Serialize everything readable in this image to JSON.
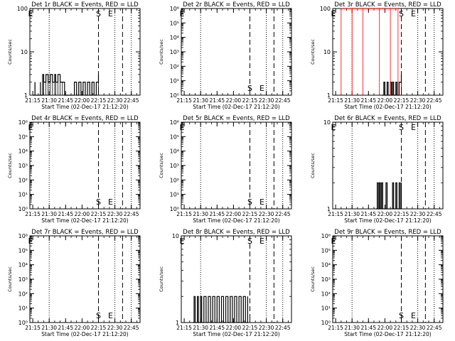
{
  "x_tick_labels": [
    "21:15",
    "21:30",
    "21:45",
    "22:00",
    "22:15",
    "22:30",
    "22:45"
  ],
  "xlabel": "Start Time (02-Dec-17 21:12:20)",
  "ylabel": "Counts/sec",
  "colors": {
    "events": "#000000",
    "lld": "#ff0000"
  },
  "chart_data": [
    {
      "type": "line",
      "title": "Det 1r BLACK = Events, RED = LLD",
      "y_scale": "log",
      "ylim": [
        1,
        100
      ],
      "y_ticks": [
        {
          "v": 1,
          "label": "1"
        },
        {
          "v": 10,
          "label": "10"
        },
        {
          "v": 100,
          "label": "100"
        }
      ],
      "markers": [
        {
          "label": "E",
          "x": "21:13"
        },
        {
          "label": "S",
          "x": "22:15"
        },
        {
          "label": "E",
          "x": "22:26"
        }
      ],
      "series": [
        {
          "color": "#000000",
          "x": [
            "21:15",
            "21:17",
            "21:17",
            "21:22",
            "21:22",
            "21:24",
            "21:25",
            "21:27",
            "21:29",
            "21:31",
            "21:33",
            "21:35",
            "21:36",
            "21:38",
            "21:40",
            "21:42",
            "21:44",
            "21:46",
            "21:47",
            "21:49",
            "21:51",
            "21:53",
            "21:55",
            "21:57",
            "21:59",
            "22:01",
            "22:03",
            "22:05",
            "22:07",
            "22:09",
            "22:11",
            "22:13",
            "22:15"
          ],
          "y": [
            1,
            2,
            1,
            2,
            1,
            3,
            2,
            3,
            2,
            3,
            2,
            3,
            2,
            3,
            2,
            2,
            1,
            1,
            1,
            1,
            1,
            2,
            1,
            2,
            1,
            2,
            1,
            2,
            1,
            2,
            1,
            2,
            3
          ]
        }
      ]
    },
    {
      "type": "line",
      "title": "Det 2r BLACK = Events, RED = LLD",
      "y_scale": "log",
      "ylim": [
        1,
        1000000
      ],
      "y_ticks": [
        {
          "v": 1,
          "label": "10⁰"
        },
        {
          "v": 10,
          "label": "10¹"
        },
        {
          "v": 100,
          "label": "10²"
        },
        {
          "v": 1000,
          "label": "10³"
        },
        {
          "v": 10000,
          "label": "10⁴"
        },
        {
          "v": 100000,
          "label": "10⁵"
        },
        {
          "v": 1000000,
          "label": "10⁶"
        }
      ],
      "markers": [
        {
          "label": "E",
          "x": "21:13"
        },
        {
          "label": "S",
          "x": "22:15"
        },
        {
          "label": "E",
          "x": "22:26"
        }
      ],
      "series": []
    },
    {
      "type": "line",
      "title": "Det 3r BLACK = Events, RED = LLD",
      "y_scale": "log",
      "ylim": [
        1,
        100
      ],
      "y_ticks": [
        {
          "v": 1,
          "label": "1"
        },
        {
          "v": 10,
          "label": "10"
        },
        {
          "v": 100,
          "label": "100"
        }
      ],
      "markers": [
        {
          "label": "E",
          "x": "21:13"
        },
        {
          "label": "S",
          "x": "22:15"
        },
        {
          "label": "E",
          "x": "22:26"
        }
      ],
      "series": [
        {
          "color": "#000000",
          "x": [
            "21:57",
            "21:59",
            "22:00",
            "22:02",
            "22:03",
            "22:05",
            "22:06",
            "22:07",
            "22:08",
            "22:10",
            "22:11",
            "22:13",
            "22:15"
          ],
          "y": [
            1,
            2,
            1,
            2,
            1,
            2,
            1,
            2,
            1,
            2,
            1,
            2,
            3
          ]
        },
        {
          "color": "#ff0000",
          "x": [
            "21:20",
            "21:30",
            "21:40",
            "21:55",
            "22:05",
            "22:12"
          ],
          "y": [
            100,
            100,
            100,
            100,
            100,
            100
          ]
        }
      ]
    },
    {
      "type": "line",
      "title": "Det 4r BLACK = Events, RED = LLD",
      "y_scale": "log",
      "ylim": [
        1,
        1000000
      ],
      "y_ticks": [
        {
          "v": 1,
          "label": "10⁰"
        },
        {
          "v": 10,
          "label": "10¹"
        },
        {
          "v": 100,
          "label": "10²"
        },
        {
          "v": 1000,
          "label": "10³"
        },
        {
          "v": 10000,
          "label": "10⁴"
        },
        {
          "v": 100000,
          "label": "10⁵"
        },
        {
          "v": 1000000,
          "label": "10⁶"
        }
      ],
      "markers": [
        {
          "label": "E",
          "x": "21:13"
        },
        {
          "label": "S",
          "x": "22:15"
        },
        {
          "label": "E",
          "x": "22:26"
        }
      ],
      "series": []
    },
    {
      "type": "line",
      "title": "Det 5r BLACK = Events, RED = LLD",
      "y_scale": "log",
      "ylim": [
        1,
        1000000
      ],
      "y_ticks": [
        {
          "v": 1,
          "label": "10⁰"
        },
        {
          "v": 10,
          "label": "10¹"
        },
        {
          "v": 100,
          "label": "10²"
        },
        {
          "v": 1000,
          "label": "10³"
        },
        {
          "v": 10000,
          "label": "10⁴"
        },
        {
          "v": 100000,
          "label": "10⁵"
        },
        {
          "v": 1000000,
          "label": "10⁶"
        }
      ],
      "markers": [
        {
          "label": "E",
          "x": "21:13"
        },
        {
          "label": "S",
          "x": "22:15"
        },
        {
          "label": "E",
          "x": "22:26"
        }
      ],
      "series": []
    },
    {
      "type": "line",
      "title": "Det 6r BLACK = Events, RED = LLD",
      "y_scale": "log",
      "ylim": [
        1,
        10
      ],
      "y_ticks": [
        {
          "v": 1,
          "label": "1"
        },
        {
          "v": 10,
          "label": "10"
        }
      ],
      "markers": [
        {
          "label": "E",
          "x": "21:13"
        },
        {
          "label": "S",
          "x": "22:15"
        },
        {
          "label": "E",
          "x": "22:26"
        }
      ],
      "series": [
        {
          "color": "#000000",
          "x": [
            "21:52",
            "21:53",
            "21:54",
            "21:55",
            "21:56",
            "21:57",
            "21:58",
            "22:01",
            "22:02",
            "22:07",
            "22:08",
            "22:10",
            "22:11",
            "22:13",
            "22:14",
            "22:15"
          ],
          "y": [
            1,
            2,
            1,
            2,
            1,
            2,
            1,
            2,
            1,
            2,
            1,
            2,
            1,
            2,
            1,
            2
          ]
        }
      ]
    },
    {
      "type": "line",
      "title": "Det 7r BLACK = Events, RED = LLD",
      "y_scale": "log",
      "ylim": [
        1,
        1000000
      ],
      "y_ticks": [
        {
          "v": 1,
          "label": "10⁰"
        },
        {
          "v": 10,
          "label": "10¹"
        },
        {
          "v": 100,
          "label": "10²"
        },
        {
          "v": 1000,
          "label": "10³"
        },
        {
          "v": 10000,
          "label": "10⁴"
        },
        {
          "v": 100000,
          "label": "10⁵"
        },
        {
          "v": 1000000,
          "label": "10⁶"
        }
      ],
      "markers": [
        {
          "label": "E",
          "x": "21:13"
        },
        {
          "label": "S",
          "x": "22:15"
        },
        {
          "label": "E",
          "x": "22:26"
        }
      ],
      "series": []
    },
    {
      "type": "line",
      "title": "Det 8r BLACK = Events, RED = LLD",
      "y_scale": "log",
      "ylim": [
        1,
        10
      ],
      "y_ticks": [
        {
          "v": 1,
          "label": "1"
        },
        {
          "v": 10,
          "label": "10"
        }
      ],
      "markers": [
        {
          "label": "E",
          "x": "21:13"
        },
        {
          "label": "S",
          "x": "22:15"
        },
        {
          "label": "E",
          "x": "22:26"
        }
      ],
      "series": [
        {
          "color": "#000000",
          "x": [
            "21:23",
            "21:24",
            "21:25",
            "21:27",
            "21:28",
            "21:30",
            "21:31",
            "21:33",
            "21:35",
            "21:37",
            "21:39",
            "21:41",
            "21:43",
            "21:45",
            "21:47",
            "21:49",
            "21:51",
            "21:53",
            "21:55",
            "21:57",
            "21:59",
            "22:01",
            "22:03",
            "22:05",
            "22:07",
            "22:09",
            "22:11",
            "22:13"
          ],
          "y": [
            1,
            2,
            1,
            2,
            1,
            2,
            1,
            2,
            1,
            2,
            1,
            2,
            1,
            2,
            1,
            2,
            1,
            2,
            1,
            2,
            1,
            2,
            1,
            2,
            1,
            2,
            1,
            2
          ]
        }
      ]
    },
    {
      "type": "line",
      "title": "Det 9r BLACK = Events, RED = LLD",
      "y_scale": "log",
      "ylim": [
        1,
        1000000
      ],
      "y_ticks": [
        {
          "v": 1,
          "label": "10⁰"
        },
        {
          "v": 10,
          "label": "10¹"
        },
        {
          "v": 100,
          "label": "10²"
        },
        {
          "v": 1000,
          "label": "10³"
        },
        {
          "v": 10000,
          "label": "10⁴"
        },
        {
          "v": 100000,
          "label": "10⁵"
        },
        {
          "v": 1000000,
          "label": "10⁶"
        }
      ],
      "markers": [
        {
          "label": "E",
          "x": "21:13"
        },
        {
          "label": "S",
          "x": "22:15"
        },
        {
          "label": "E",
          "x": "22:26"
        }
      ],
      "series": []
    }
  ]
}
